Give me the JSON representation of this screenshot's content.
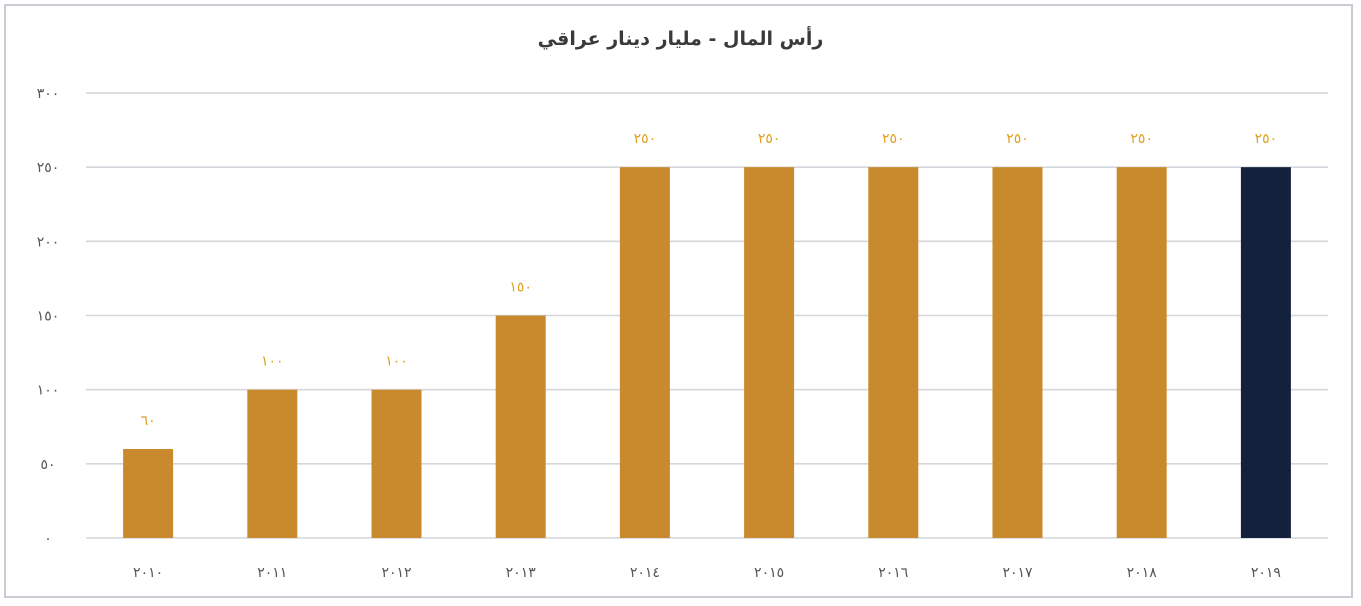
{
  "chart_data": {
    "type": "bar",
    "title": "رأس المال - مليار دينار عراقي",
    "xlabel": "",
    "ylabel": "",
    "categories": [
      "٢٠١٠",
      "٢٠١١",
      "٢٠١٢",
      "٢٠١٣",
      "٢٠١٤",
      "٢٠١٥",
      "٢٠١٦",
      "٢٠١٧",
      "٢٠١٨",
      "٢٠١٩"
    ],
    "values": [
      60,
      100,
      100,
      150,
      250,
      250,
      250,
      250,
      250,
      250
    ],
    "value_labels": [
      "٦٠",
      "١٠٠",
      "١٠٠",
      "١٥٠",
      "٢٥٠",
      "٢٥٠",
      "٢٥٠",
      "٢٥٠",
      "٢٥٠",
      "٢٥٠"
    ],
    "ylim": [
      0,
      300
    ],
    "yticks": [
      0,
      50,
      100,
      150,
      200,
      250,
      300
    ],
    "ytick_labels": [
      "٠",
      "٥٠",
      "١٠٠",
      "١٥٠",
      "٢٠٠",
      "٢٥٠",
      "٣٠٠"
    ],
    "grid": true,
    "legend": "none",
    "colors": {
      "bar": "#c98a2e",
      "highlight_bar": "#14213d",
      "data_label": "#e0a020",
      "grid": "#d3d7dc"
    },
    "highlight_index": 9
  }
}
